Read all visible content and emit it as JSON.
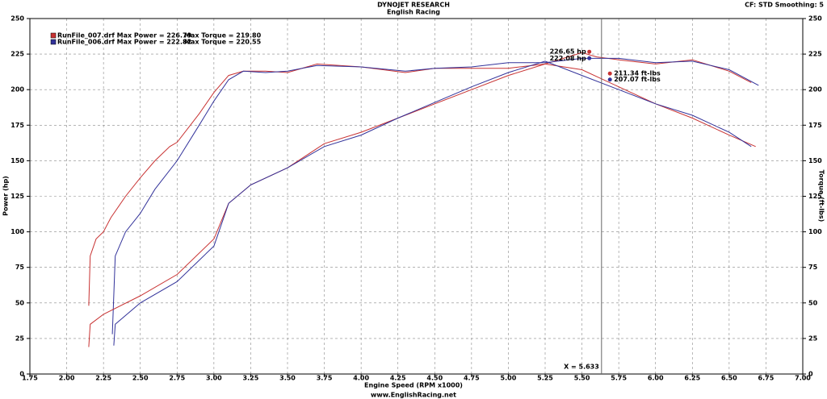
{
  "chart_data": {
    "type": "line",
    "title": "DYNOJET RESEARCH",
    "subtitle": "English Racing",
    "corner_note": "CF: STD  Smoothing: 5",
    "xlabel": "Engine Speed (RPM x1000)",
    "ylabel": "Power (hp)",
    "y2label": "Torque (ft-lbs)",
    "footer": "www.EnglishRacing.net",
    "xlim": [
      1.75,
      7
    ],
    "xticks": [
      1.75,
      {
        "value": 2,
        "label": "2.00"
      },
      2.25,
      {
        "value": 2.5,
        "label": "2.50"
      },
      2.75,
      {
        "value": 3,
        "label": "3.00"
      },
      3.25,
      {
        "value": 3.5,
        "label": "3.50"
      },
      3.75,
      {
        "value": 4,
        "label": "4.00"
      },
      4.25,
      {
        "value": 4.5,
        "label": "4.50"
      },
      4.75,
      {
        "value": 5,
        "label": "5.00"
      },
      5.25,
      {
        "value": 5.5,
        "label": "5.50"
      },
      5.75,
      {
        "value": 6,
        "label": "6.00"
      },
      6.25,
      {
        "value": 6.5,
        "label": "6.50"
      },
      6.75,
      {
        "value": 7,
        "label": "7.00"
      }
    ],
    "ylim": [
      0,
      250
    ],
    "yticks": [
      0,
      25,
      50,
      75,
      100,
      125,
      150,
      175,
      200,
      225,
      250
    ],
    "y2lim": [
      0,
      250
    ],
    "y2ticks": [
      0,
      25,
      50,
      75,
      100,
      125,
      150,
      175,
      200,
      225,
      250
    ],
    "grid": true,
    "legend": [
      {
        "text": "RunFile_007.drf Max Power = 226.79",
        "torque": "Max Torque = 219.80",
        "color": "#c83232"
      },
      {
        "text": "RunFile_006.drf Max Power = 222.82",
        "torque": "Max Torque = 220.55",
        "color": "#32329a"
      }
    ],
    "series": [
      {
        "color": "#c83232",
        "x": [
          2.15,
          2.16,
          2.2,
          2.25,
          2.3,
          2.4,
          2.5,
          2.6,
          2.7,
          2.75,
          2.9,
          3.0,
          3.1,
          3.2,
          3.35,
          3.5,
          3.7,
          4.0,
          4.3,
          4.5,
          4.75,
          5.0,
          5.25,
          5.5,
          5.6,
          5.75,
          6.0,
          6.25,
          6.5,
          6.65
        ],
        "values": [
          48,
          83,
          95,
          100,
          110,
          125,
          138,
          150,
          160,
          163,
          183,
          198,
          210,
          213,
          213,
          212,
          218,
          216,
          212,
          215,
          215,
          215,
          218,
          226,
          223,
          221,
          218,
          221,
          213,
          205
        ]
      },
      {
        "color": "#32329a",
        "x": [
          2.31,
          2.33,
          2.4,
          2.5,
          2.6,
          2.75,
          2.9,
          3.0,
          3.1,
          3.2,
          3.35,
          3.5,
          3.7,
          4.0,
          4.3,
          4.5,
          4.75,
          5.0,
          5.25,
          5.5,
          5.75,
          6.0,
          6.25,
          6.5,
          6.7
        ],
        "values": [
          28,
          83,
          100,
          113,
          130,
          150,
          175,
          192,
          207,
          213,
          212,
          213,
          217,
          216,
          213,
          215,
          216,
          219,
          219,
          222,
          222,
          219,
          220,
          214,
          203
        ]
      },
      {
        "color": "#c83232",
        "axis": "y2",
        "x": [
          2.15,
          2.16,
          2.25,
          2.5,
          2.75,
          3.0,
          3.1,
          3.25,
          3.5,
          3.75,
          4.0,
          4.25,
          4.5,
          4.75,
          5.0,
          5.25,
          5.5,
          5.75,
          6.0,
          6.25,
          6.5,
          6.68
        ],
        "values": [
          19,
          35,
          42,
          55,
          70,
          95,
          120,
          133,
          145,
          162,
          170,
          180,
          190,
          200,
          210,
          218,
          214,
          202,
          190,
          180,
          168,
          160
        ]
      },
      {
        "color": "#32329a",
        "axis": "y2",
        "x": [
          2.32,
          2.33,
          2.5,
          2.75,
          3.0,
          3.1,
          3.25,
          3.5,
          3.75,
          4.0,
          4.25,
          4.5,
          4.75,
          5.0,
          5.25,
          5.5,
          5.75,
          6.0,
          6.25,
          6.5,
          6.65
        ],
        "values": [
          20,
          35,
          50,
          65,
          90,
          120,
          133,
          145,
          160,
          168,
          180,
          191,
          202,
          212,
          220,
          210,
          200,
          190,
          182,
          170,
          160
        ]
      }
    ],
    "cursor": {
      "label": "X = 5.633",
      "x": 5.633
    },
    "annotations": [
      {
        "text": "226.65 hp",
        "x": 5.55,
        "y": 226.65,
        "color": "#c83232",
        "side": "left"
      },
      {
        "text": "222.08 hp",
        "x": 5.55,
        "y": 222.08,
        "color": "#32329a",
        "side": "left"
      },
      {
        "text": "211.34 ft-lbs",
        "x": 5.69,
        "y": 211.34,
        "color": "#c83232",
        "side": "right"
      },
      {
        "text": "207.07 ft-lbs",
        "x": 5.69,
        "y": 207.07,
        "color": "#32329a",
        "side": "right"
      }
    ]
  }
}
